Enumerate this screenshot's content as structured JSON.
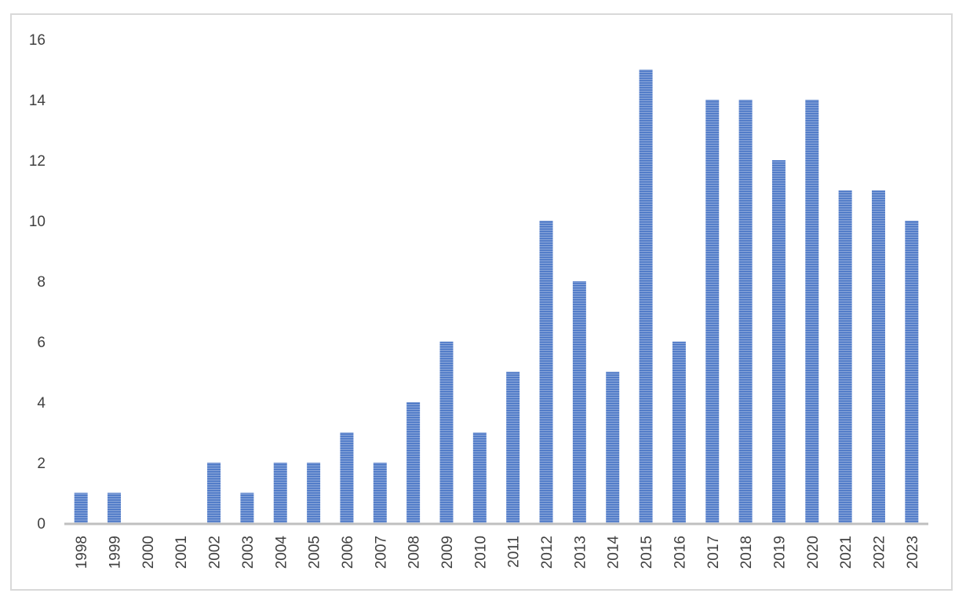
{
  "chart_data": {
    "type": "bar",
    "title": "",
    "xlabel": "",
    "ylabel": "",
    "categories": [
      "1998",
      "1999",
      "2000",
      "2001",
      "2002",
      "2003",
      "2004",
      "2005",
      "2006",
      "2007",
      "2008",
      "2009",
      "2010",
      "2011",
      "2012",
      "2013",
      "2014",
      "2015",
      "2016",
      "2017",
      "2018",
      "2019",
      "2020",
      "2021",
      "2022",
      "2023"
    ],
    "values": [
      1,
      1,
      0,
      0,
      2,
      1,
      2,
      2,
      3,
      2,
      4,
      6,
      3,
      5,
      10,
      8,
      5,
      15,
      6,
      14,
      14,
      12,
      14,
      11,
      11,
      10
    ],
    "ylim": [
      0,
      16
    ],
    "yticks": [
      0,
      2,
      4,
      6,
      8,
      10,
      12,
      14,
      16
    ],
    "grid": false,
    "legend": "none",
    "bar_color": "#4472c4",
    "bar_stripe_color": "#ffffff",
    "axis_color": "#bfbfbf",
    "border_color": "#d9d9d9"
  }
}
